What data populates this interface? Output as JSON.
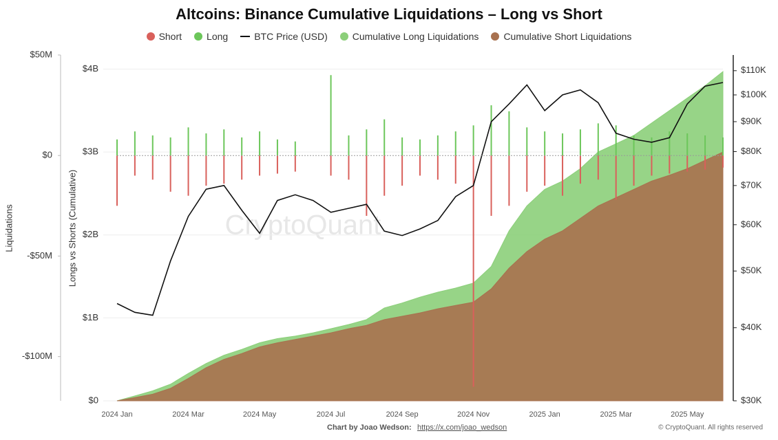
{
  "chart_data": {
    "type": "combo",
    "title": "Altcoins: Binance Cumulative Liquidations – Long vs Short",
    "ylabel": "Liquidations",
    "y2label": "Longs vs Shorts (Cumulative)",
    "watermark": "CryptoQuant",
    "categories": [
      "2024 Jan",
      null,
      null,
      null,
      "2024 Mar",
      null,
      null,
      null,
      "2024 May",
      null,
      null,
      null,
      "2024 Jul",
      null,
      null,
      null,
      "2024 Sep",
      null,
      null,
      null,
      "2024 Nov",
      null,
      null,
      null,
      "2025 Jan",
      null,
      null,
      null,
      "2025 Mar",
      null,
      null,
      null,
      "2025 May",
      null,
      null
    ],
    "ylim": [
      -122000000,
      50000000
    ],
    "yticks": [
      {
        "value": 50000000,
        "label": "$50M"
      },
      {
        "value": 0,
        "label": "$0"
      },
      {
        "value": -50000000,
        "label": "-$50M"
      },
      {
        "value": -100000000,
        "label": "-$100M"
      }
    ],
    "y2lim": [
      0,
      4170000000
    ],
    "y2ticks": [
      {
        "value": 0,
        "label": "$0"
      },
      {
        "value": 1000000000,
        "label": "$1B"
      },
      {
        "value": 2000000000,
        "label": "$2B"
      },
      {
        "value": 3000000000,
        "label": "$3B"
      },
      {
        "value": 4000000000,
        "label": "$4B"
      }
    ],
    "y3lim": [
      30000,
      117000
    ],
    "y3scale": "log",
    "y3ticks": [
      {
        "value": 30000,
        "label": "$30K"
      },
      {
        "value": 40000,
        "label": "$40K"
      },
      {
        "value": 50000,
        "label": "$50K"
      },
      {
        "value": 60000,
        "label": "$60K"
      },
      {
        "value": 70000,
        "label": "$70K"
      },
      {
        "value": 80000,
        "label": "$80K"
      },
      {
        "value": 90000,
        "label": "$90K"
      },
      {
        "value": 100000,
        "label": "$100K"
      },
      {
        "value": 110000,
        "label": "$110K"
      }
    ],
    "grid": true,
    "series": [
      {
        "name": "Short",
        "type": "bar",
        "axis": "y",
        "color": "#d9605b",
        "values": [
          -25000000,
          -10000000,
          -12000000,
          -18000000,
          -20000000,
          -15000000,
          -14000000,
          -12000000,
          -10000000,
          -9000000,
          -8000000,
          null,
          -10000000,
          -12000000,
          -30000000,
          -20000000,
          -15000000,
          -10000000,
          -12000000,
          -14000000,
          -115000000,
          -30000000,
          -25000000,
          -18000000,
          -15000000,
          -20000000,
          -14000000,
          -12000000,
          -22000000,
          -15000000,
          -10000000,
          -9000000,
          -8000000,
          -7000000,
          -6000000
        ]
      },
      {
        "name": "Long",
        "type": "bar",
        "axis": "y",
        "color": "#6cc65a",
        "values": [
          8000000,
          12000000,
          10000000,
          9000000,
          14000000,
          11000000,
          13000000,
          9000000,
          12000000,
          8000000,
          7000000,
          null,
          40000000,
          10000000,
          13000000,
          18000000,
          9000000,
          8000000,
          10000000,
          12000000,
          15000000,
          25000000,
          22000000,
          14000000,
          12000000,
          11000000,
          13000000,
          16000000,
          15000000,
          10000000,
          9000000,
          12000000,
          11000000,
          10000000,
          9000000
        ]
      },
      {
        "name": "BTC Price (USD)",
        "type": "line",
        "axis": "y3",
        "color": "#111111",
        "values": [
          44000,
          42500,
          42000,
          52000,
          62000,
          69000,
          70000,
          63500,
          58000,
          66000,
          67500,
          66000,
          63000,
          64000,
          65000,
          58500,
          57500,
          59000,
          61000,
          67000,
          70000,
          90000,
          96500,
          104000,
          94000,
          100000,
          102000,
          97000,
          86000,
          84000,
          83000,
          84500,
          96500,
          103500,
          105000
        ]
      },
      {
        "name": "Cumulative Long Liquidations",
        "type": "area",
        "axis": "y2",
        "color": "#8ccf7a",
        "values": [
          0,
          60000000,
          120000000,
          200000000,
          330000000,
          450000000,
          550000000,
          620000000,
          700000000,
          750000000,
          780000000,
          820000000,
          870000000,
          920000000,
          980000000,
          1120000000,
          1180000000,
          1250000000,
          1310000000,
          1360000000,
          1420000000,
          1620000000,
          2050000000,
          2350000000,
          2550000000,
          2650000000,
          2800000000,
          3000000000,
          3100000000,
          3200000000,
          3350000000,
          3500000000,
          3650000000,
          3800000000,
          3970000000
        ]
      },
      {
        "name": "Cumulative Short Liquidations",
        "type": "area",
        "axis": "y2",
        "color": "#a8714f",
        "values": [
          0,
          40000000,
          80000000,
          150000000,
          270000000,
          400000000,
          500000000,
          570000000,
          650000000,
          700000000,
          740000000,
          780000000,
          820000000,
          870000000,
          910000000,
          980000000,
          1020000000,
          1060000000,
          1110000000,
          1150000000,
          1190000000,
          1350000000,
          1600000000,
          1800000000,
          1950000000,
          2050000000,
          2200000000,
          2350000000,
          2450000000,
          2550000000,
          2650000000,
          2720000000,
          2800000000,
          2900000000,
          3000000000
        ]
      }
    ]
  },
  "footer": {
    "credit": "Chart by Joao Wedson:",
    "link": "https://x.com/joao_wedson",
    "copyright": "© CryptoQuant. All rights reserved"
  }
}
